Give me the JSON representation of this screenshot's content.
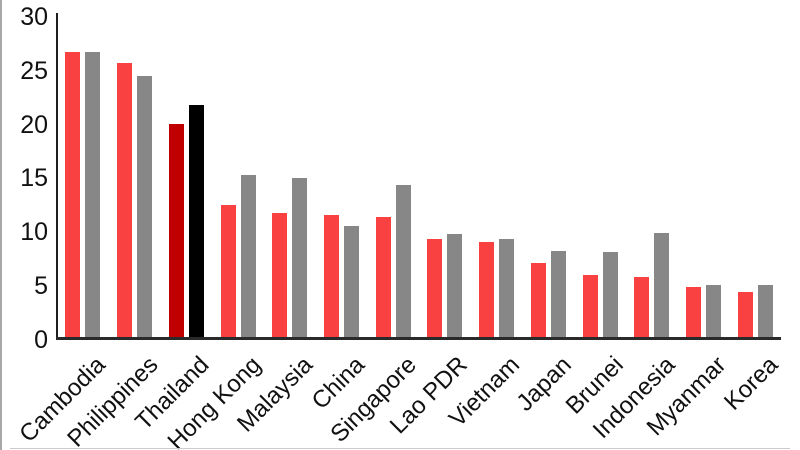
{
  "chart_data": {
    "type": "bar",
    "title": "",
    "categories": [
      "Cambodia",
      "Philippines",
      "Thailand",
      "Hong Kong",
      "Malaysia",
      "China",
      "Singapore",
      "Lao PDR",
      "Vietnam",
      "Japan",
      "Brunei",
      "Indonesia",
      "Myanmar",
      "Korea"
    ],
    "series": [
      {
        "name": "series-red",
        "color": "#FA4142",
        "values": [
          26.5,
          25.4,
          19.8,
          12.3,
          11.5,
          11.3,
          11.1,
          9.1,
          8.8,
          6.9,
          5.8,
          5.6,
          4.6,
          4.2
        ]
      },
      {
        "name": "series-gray",
        "color": "#878787",
        "values": [
          26.5,
          24.2,
          21.5,
          15.0,
          14.8,
          10.3,
          14.1,
          9.6,
          9.1,
          8.0,
          7.9,
          9.7,
          4.8,
          4.8
        ]
      }
    ],
    "highlight": {
      "category": "Thailand",
      "series_colors": [
        "#C00000",
        "#000000"
      ]
    },
    "y_axis": {
      "min": 0,
      "max": 30,
      "tick_step": 5,
      "tick_labels": [
        "0",
        "5",
        "10",
        "15",
        "20",
        "25",
        "30"
      ]
    },
    "x_axis": {
      "label_rotation_deg": -45
    },
    "legend": "none",
    "grid": false,
    "colors": {
      "axis": "#2a2a2a",
      "text": "#111111",
      "background": "#ffffff"
    }
  }
}
